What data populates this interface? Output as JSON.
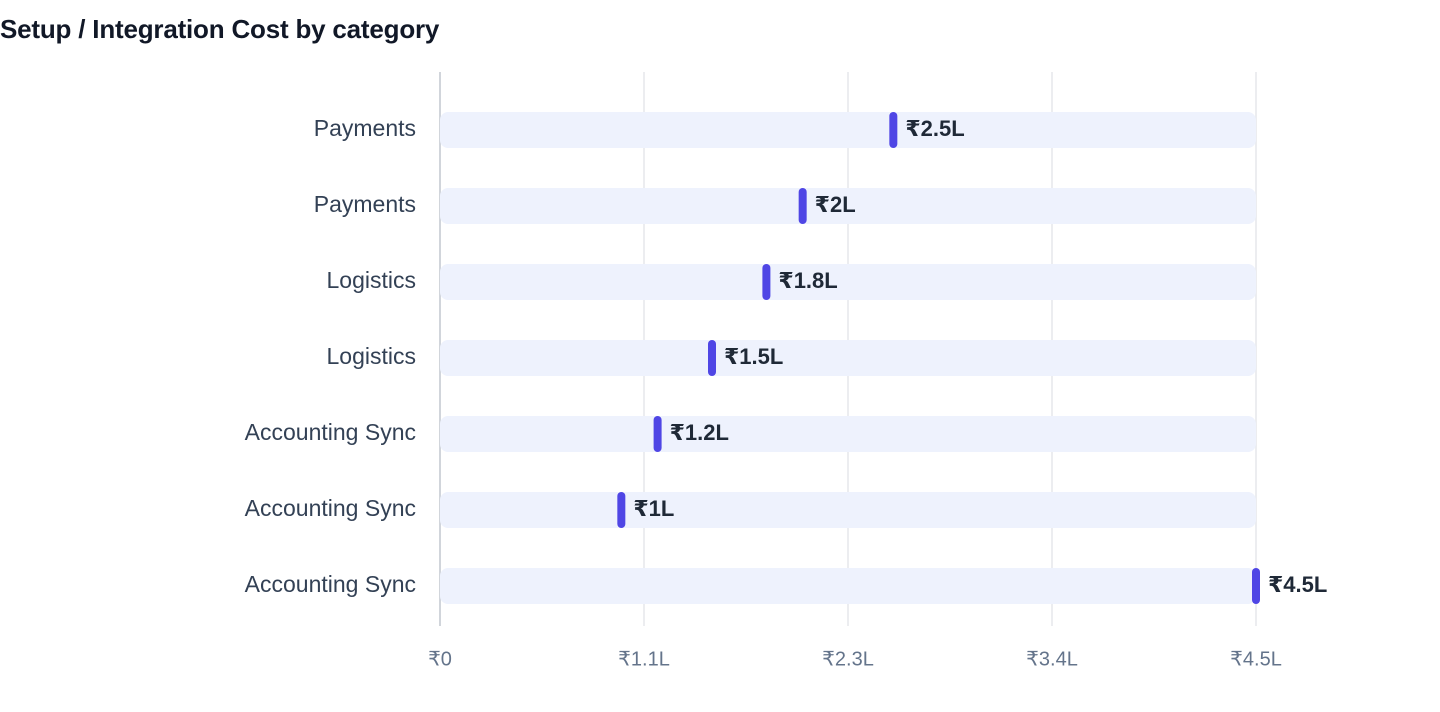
{
  "chart_data": {
    "type": "bar",
    "title": "Setup / Integration Cost by category",
    "xlabel": "",
    "ylabel": "",
    "categories": [
      "Payments",
      "Payments",
      "Logistics",
      "Logistics",
      "Accounting Sync",
      "Accounting Sync",
      "Accounting Sync"
    ],
    "values": [
      2.5,
      2.0,
      1.8,
      1.5,
      1.2,
      1.0,
      4.5
    ],
    "value_labels": [
      "₹2.5L",
      "₹2L",
      "₹1.8L",
      "₹1.5L",
      "₹1.2L",
      "₹1L",
      "₹4.5L"
    ],
    "unit": "L",
    "xlim": [
      0,
      4.5
    ],
    "x_ticks": [
      0,
      1.125,
      2.25,
      3.375,
      4.5
    ],
    "x_tick_labels": [
      "₹0",
      "₹1.1L",
      "₹2.3L",
      "₹3.4L",
      "₹4.5L"
    ],
    "orientation": "horizontal",
    "grid": true,
    "colors": {
      "marker": "#4f46e5",
      "track": "#eef2fd",
      "grid": "#e5e7eb"
    }
  }
}
